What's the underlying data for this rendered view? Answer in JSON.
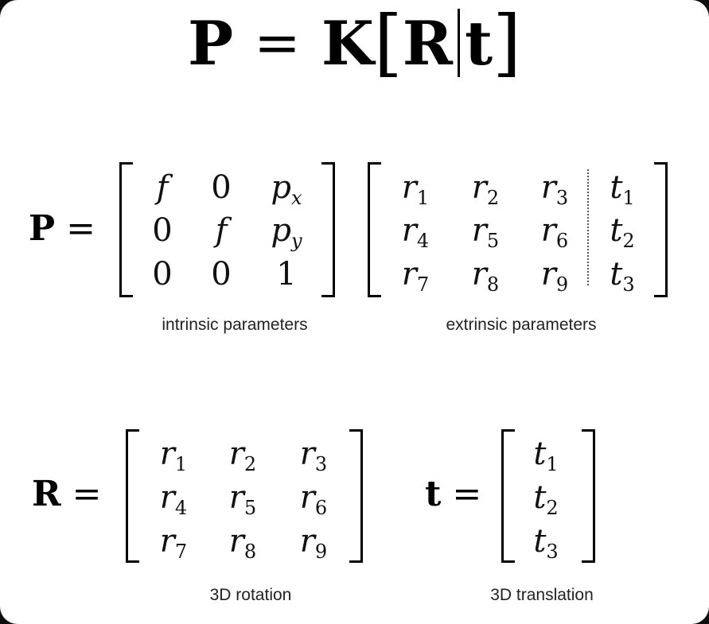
{
  "title": {
    "P": "P",
    "eq": "=",
    "K": "K",
    "lbr": "[",
    "R": "R",
    "t": "t",
    "rbr": "]"
  },
  "projection": {
    "lhs": "P",
    "eq": "=",
    "intrinsic": {
      "rows": [
        [
          {
            "v": "f",
            "s": ""
          },
          {
            "v": "0",
            "s": ""
          },
          {
            "v": "p",
            "s": "x"
          }
        ],
        [
          {
            "v": "0",
            "s": ""
          },
          {
            "v": "f",
            "s": ""
          },
          {
            "v": "p",
            "s": "y"
          }
        ],
        [
          {
            "v": "0",
            "s": ""
          },
          {
            "v": "0",
            "s": ""
          },
          {
            "v": "1",
            "s": ""
          }
        ]
      ],
      "caption": "intrinsic parameters"
    },
    "extrinsic": {
      "rows": [
        [
          {
            "v": "r",
            "s": "1"
          },
          {
            "v": "r",
            "s": "2"
          },
          {
            "v": "r",
            "s": "3"
          },
          {
            "v": "t",
            "s": "1"
          }
        ],
        [
          {
            "v": "r",
            "s": "4"
          },
          {
            "v": "r",
            "s": "5"
          },
          {
            "v": "r",
            "s": "6"
          },
          {
            "v": "t",
            "s": "2"
          }
        ],
        [
          {
            "v": "r",
            "s": "7"
          },
          {
            "v": "r",
            "s": "8"
          },
          {
            "v": "r",
            "s": "9"
          },
          {
            "v": "t",
            "s": "3"
          }
        ]
      ],
      "caption": "extrinsic parameters"
    }
  },
  "rotation": {
    "lhs": "R",
    "eq": "=",
    "rows": [
      [
        {
          "v": "r",
          "s": "1"
        },
        {
          "v": "r",
          "s": "2"
        },
        {
          "v": "r",
          "s": "3"
        }
      ],
      [
        {
          "v": "r",
          "s": "4"
        },
        {
          "v": "r",
          "s": "5"
        },
        {
          "v": "r",
          "s": "6"
        }
      ],
      [
        {
          "v": "r",
          "s": "7"
        },
        {
          "v": "r",
          "s": "8"
        },
        {
          "v": "r",
          "s": "9"
        }
      ]
    ],
    "caption": "3D rotation"
  },
  "translation": {
    "lhs": "t",
    "eq": "=",
    "rows": [
      [
        {
          "v": "t",
          "s": "1"
        }
      ],
      [
        {
          "v": "t",
          "s": "2"
        }
      ],
      [
        {
          "v": "t",
          "s": "3"
        }
      ]
    ],
    "caption": "3D translation"
  }
}
